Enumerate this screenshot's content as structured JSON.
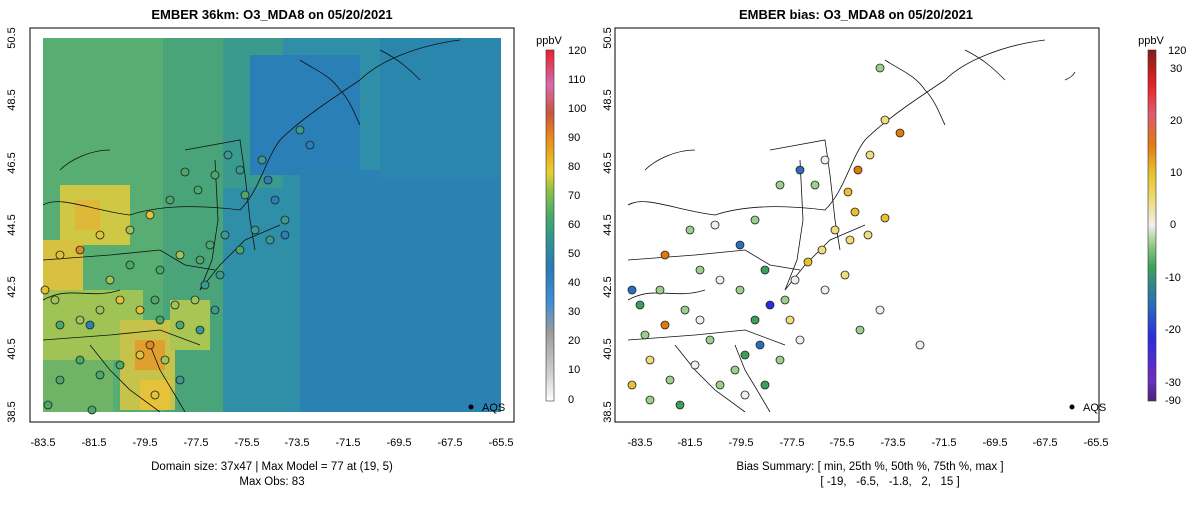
{
  "left": {
    "title": "EMBER 36km: O3_MDA8 on 05/20/2021",
    "x_ticks": [
      "-83.5",
      "-81.5",
      "-79.5",
      "-77.5",
      "-75.5",
      "-73.5",
      "-71.5",
      "-69.5",
      "-67.5",
      "-65.5"
    ],
    "y_ticks": [
      "50.5",
      "48.5",
      "46.5",
      "44.5",
      "42.5",
      "40.5",
      "38.5"
    ],
    "legend_title": "ppbV",
    "legend_ticks": [
      "120",
      "110",
      "100",
      "90",
      "80",
      "70",
      "60",
      "50",
      "40",
      "30",
      "20",
      "10",
      "0"
    ],
    "aqs_label": "AQS",
    "footer_line1": "Domain size: 37x47 | Max Model = 77 at (19, 5)",
    "footer_line2": "Max Obs: 83"
  },
  "right": {
    "title": "EMBER bias: O3_MDA8 on 05/20/2021",
    "x_ticks": [
      "-83.5",
      "-81.5",
      "-79.5",
      "-77.5",
      "-75.5",
      "-73.5",
      "-71.5",
      "-69.5",
      "-67.5",
      "-65.5"
    ],
    "y_ticks": [
      "50.5",
      "48.5",
      "46.5",
      "44.5",
      "42.5",
      "40.5",
      "38.5"
    ],
    "legend_title": "ppbV",
    "legend_ticks": [
      "120",
      "30",
      "20",
      "10",
      "0",
      "-10",
      "-20",
      "-30",
      "-90"
    ],
    "aqs_label": "AQS",
    "footer_line1": "Bias Summary: [ min, 25th %, 50th %, 75th %, max ]",
    "footer_line2": "[ -19,   -6.5,   -1.8,   2,   15 ]"
  },
  "colors": {
    "ocean": "#2f86b0",
    "land": "#5faa6e",
    "warm": "#e0c237",
    "hot": "#e08b22",
    "lines": "#111111"
  }
}
